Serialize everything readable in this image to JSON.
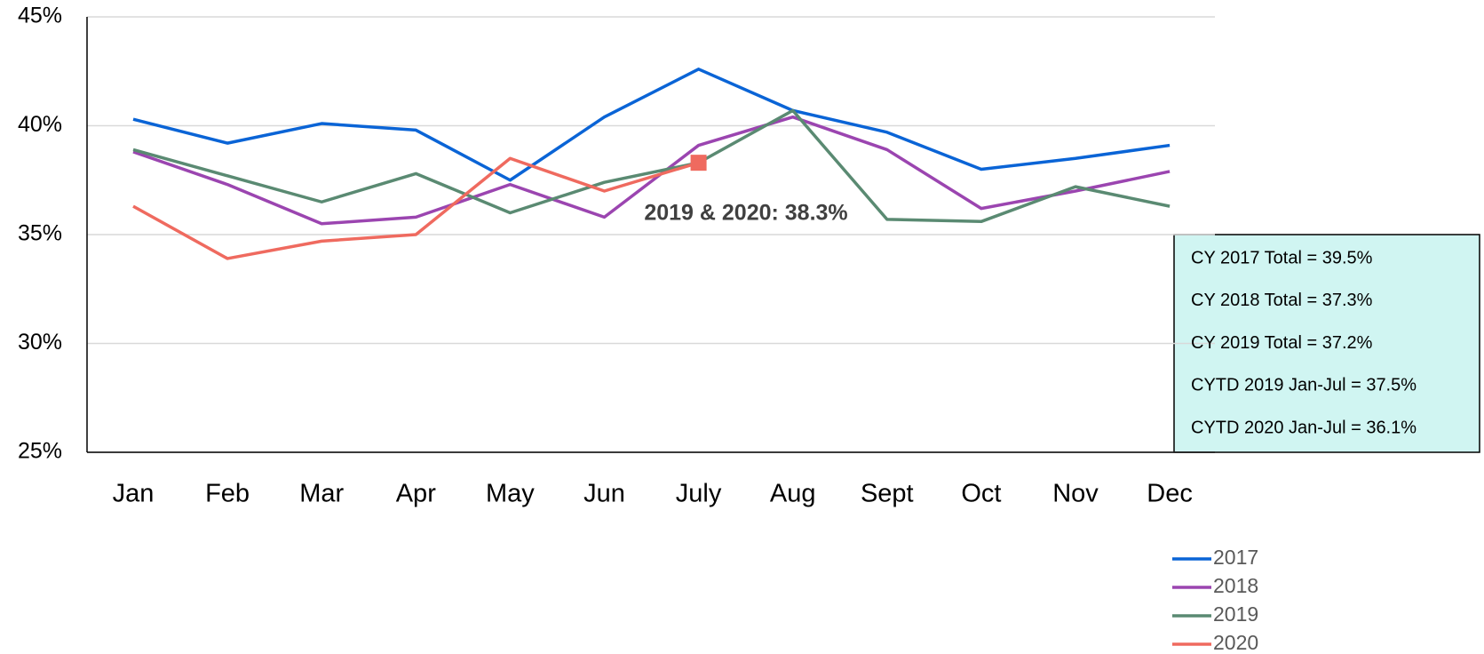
{
  "chart_data": {
    "type": "line",
    "categories": [
      "Jan",
      "Feb",
      "Mar",
      "Apr",
      "May",
      "Jun",
      "July",
      "Aug",
      "Sept",
      "Oct",
      "Nov",
      "Dec"
    ],
    "series": [
      {
        "name": "2017",
        "color": "#0a64d6",
        "values": [
          40.3,
          39.2,
          40.1,
          39.8,
          37.5,
          40.4,
          42.6,
          40.7,
          39.7,
          38.0,
          38.5,
          39.1
        ]
      },
      {
        "name": "2018",
        "color": "#9b45b0",
        "values": [
          38.8,
          37.3,
          35.5,
          35.8,
          37.3,
          35.8,
          39.1,
          40.4,
          38.9,
          36.2,
          37.0,
          37.9
        ]
      },
      {
        "name": "2019",
        "color": "#5a8a72",
        "values": [
          38.9,
          37.7,
          36.5,
          37.8,
          36.0,
          37.4,
          38.3,
          40.7,
          35.7,
          35.6,
          37.2,
          36.3
        ]
      },
      {
        "name": "2020",
        "color": "#ef6a5f",
        "end_marker": "square",
        "values": [
          36.3,
          33.9,
          34.7,
          35.0,
          38.5,
          37.0,
          38.3,
          null,
          null,
          null,
          null,
          null
        ]
      }
    ],
    "ylim": [
      25,
      45
    ],
    "yticks": [
      {
        "value": 25,
        "label": "25%"
      },
      {
        "value": 30,
        "label": "30%"
      },
      {
        "value": 35,
        "label": "35%"
      },
      {
        "value": 40,
        "label": "40%"
      },
      {
        "value": 45,
        "label": "45%"
      }
    ],
    "grid": true,
    "annotation": "2019 & 2020: 38.3%",
    "summary_box": [
      "CY 2017 Total  = 39.5%",
      "CY 2018 Total  = 37.3%",
      "CY 2019 Total = 37.2%",
      "CYTD 2019 Jan-Jul = 37.5%",
      "CYTD 2020 Jan-Jul = 36.1%"
    ],
    "legend": "bottom-right"
  }
}
